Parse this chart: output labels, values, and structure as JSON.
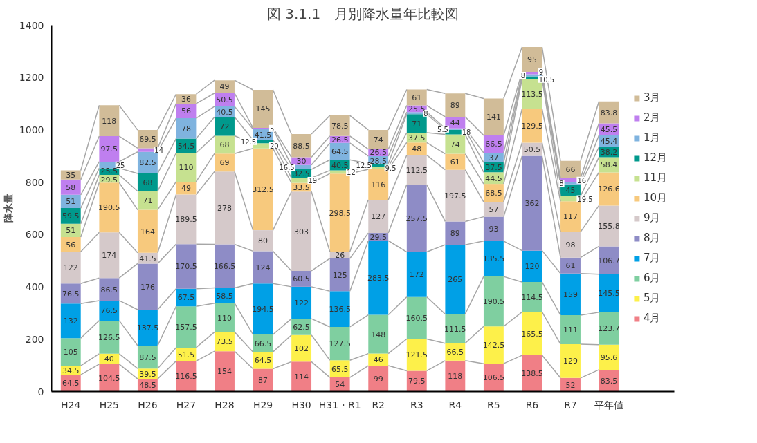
{
  "chart_data": {
    "type": "bar",
    "stacked": true,
    "title": "図 3.1.1　月別降水量年比較図",
    "ylabel": "降水量",
    "categories": [
      "H24",
      "H25",
      "H26",
      "H27",
      "H28",
      "H29",
      "H30",
      "H31・R1",
      "R2",
      "R3",
      "R4",
      "R5",
      "R6",
      "R7",
      "平年値"
    ],
    "series": [
      {
        "name": "4月",
        "color": "#f07f86",
        "values": [
          64.5,
          104.5,
          48.5,
          116.5,
          154,
          87,
          114,
          54,
          99,
          79.5,
          118,
          106.5,
          138.5,
          52,
          83.5
        ]
      },
      {
        "name": "5月",
        "color": "#fdf04a",
        "values": [
          34.5,
          40,
          39.5,
          51.5,
          73.5,
          64.5,
          102,
          65.5,
          46,
          121.5,
          66.5,
          142.5,
          165.5,
          129,
          95.6
        ]
      },
      {
        "name": "6月",
        "color": "#7fcfa0",
        "values": [
          105,
          126.5,
          87.5,
          157.5,
          110,
          66.5,
          62.5,
          127.5,
          148,
          160.5,
          111.5,
          190.5,
          114.5,
          111,
          123.7
        ]
      },
      {
        "name": "7月",
        "color": "#00a0e6",
        "values": [
          132,
          76.5,
          137.5,
          67.5,
          58.5,
          194.5,
          122,
          136.5,
          283.5,
          172,
          265,
          135.5,
          120,
          159,
          145.5
        ]
      },
      {
        "name": "8月",
        "color": "#8e8cc6",
        "values": [
          76.5,
          86.5,
          176,
          170.5,
          166.5,
          124,
          60.5,
          125,
          29.5,
          257.5,
          89,
          93,
          362,
          61,
          106.7
        ]
      },
      {
        "name": "9月",
        "color": "#d5c9ca",
        "values": [
          122,
          174,
          41.5,
          189.5,
          278,
          80,
          303,
          26,
          127,
          112.5,
          197.5,
          57,
          50.5,
          98,
          155.8
        ]
      },
      {
        "name": "10月",
        "color": "#f7c97d",
        "values": [
          56,
          190.5,
          164,
          49,
          69,
          312.5,
          33.5,
          298.5,
          116,
          48,
          61,
          68.5,
          129.5,
          117,
          126.6
        ]
      },
      {
        "name": "11月",
        "color": "#c6e190",
        "values": [
          51,
          29.5,
          71,
          110,
          68,
          20,
          19,
          12,
          9.5,
          37.5,
          74,
          44.5,
          113.5,
          19.5,
          58.4
        ]
      },
      {
        "name": "12月",
        "color": "#00998c",
        "values": [
          59.5,
          25.5,
          68,
          54.5,
          72,
          12.5,
          32.5,
          40.5,
          12.5,
          71,
          18,
          37.5,
          10.5,
          45,
          38.2
        ]
      },
      {
        "name": "1月",
        "color": "#7fb3df",
        "values": [
          51,
          25,
          82.5,
          78,
          40.5,
          41.5,
          16.5,
          64.5,
          28.5,
          8,
          5.5,
          37,
          8,
          8,
          45.4
        ]
      },
      {
        "name": "2月",
        "color": "#bf7fef",
        "values": [
          58,
          97.5,
          14,
          56,
          50.5,
          5,
          30,
          26.5,
          26.5,
          25.5,
          44,
          66.5,
          9,
          16,
          45.5
        ]
      },
      {
        "name": "3月",
        "color": "#d1bc98",
        "values": [
          35,
          118,
          69.5,
          36,
          49,
          145,
          88.5,
          78.5,
          74,
          61,
          89,
          141,
          95,
          66,
          83.8
        ]
      }
    ],
    "ylim": [
      0,
      1400
    ],
    "yticks": [
      0,
      200,
      400,
      600,
      800,
      1000,
      1200,
      1400
    ],
    "data_labels": true,
    "legend": "right",
    "grid": false
  }
}
